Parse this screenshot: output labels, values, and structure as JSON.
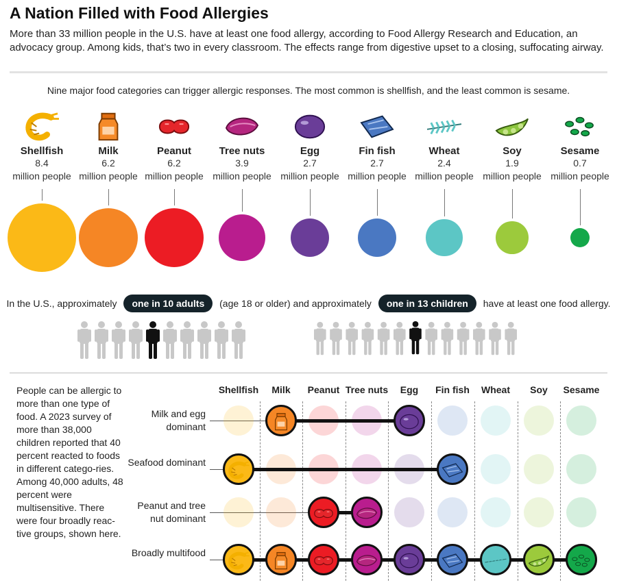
{
  "header": {
    "title": "A Nation Filled with Food Allergies",
    "intro": "More than 33 million people in the U.S. have at least one food allergy, according to Food Allergy Research and Education, an advocacy group. Among kids, that’s two in every classroom. The effects range from digestive upset to a closing, suffocating airway."
  },
  "subhead": "Nine major food categories can trigger allergic responses. The most common is shellfish, and the least common is sesame.",
  "chart_data": {
    "type": "bubble",
    "unit": "million people",
    "categories": [
      "Shellfish",
      "Milk",
      "Peanut",
      "Tree nuts",
      "Egg",
      "Fin fish",
      "Wheat",
      "Soy",
      "Sesame"
    ],
    "values": [
      8.4,
      6.2,
      6.2,
      3.9,
      2.7,
      2.7,
      2.4,
      1.9,
      0.7
    ],
    "value_labels": [
      "8.4",
      "6.2",
      "6.2",
      "3.9",
      "2.7",
      "2.7",
      "2.4",
      "1.9",
      "0.7"
    ],
    "colors": [
      "#fbb917",
      "#f58625",
      "#ec1c24",
      "#b91d8e",
      "#6a3d98",
      "#4a78c2",
      "#5cc6c5",
      "#9cca3c",
      "#14a84a"
    ],
    "icons": [
      "shrimp-icon",
      "milk-carton-icon",
      "peanut-icon",
      "almond-icon",
      "egg-icon",
      "fish-fillet-icon",
      "wheat-icon",
      "edamame-icon",
      "sesame-seed-icon"
    ]
  },
  "ratio": {
    "prefix": "In the U.S., approximately",
    "adults_pill": "one in 10 adults",
    "middle": "(age 18 or older) and approximately",
    "children_pill": "one in 13 children",
    "suffix": "have at least one food allergy.",
    "adults_total": 10,
    "adults_highlight": 5,
    "children_total": 13,
    "children_highlight": 7,
    "figure_color": "#c8c8c8",
    "highlight_color": "#111111"
  },
  "groups": {
    "sidenote": "People can be allergic to more than one type of food. A 2023 survey of more than 38,000 children reported that 40 percent reacted to foods in different catego-ries. Among 40,000 adults, 48 percent were multisensitive. There were four broadly reac-tive groups, shown here.",
    "columns": [
      "Shellfish",
      "Milk",
      "Peanut",
      "Tree nuts",
      "Egg",
      "Fin fish",
      "Wheat",
      "Soy",
      "Sesame"
    ],
    "rows": [
      {
        "label": "Milk and egg dominant",
        "members": [
          "Milk",
          "Egg"
        ]
      },
      {
        "label": "Seafood dominant",
        "members": [
          "Shellfish",
          "Fin fish"
        ]
      },
      {
        "label": "Peanut and tree nut dominant",
        "members": [
          "Peanut",
          "Tree nuts"
        ]
      },
      {
        "label": "Broadly multifood",
        "members": [
          "Shellfish",
          "Milk",
          "Peanut",
          "Tree nuts",
          "Egg",
          "Fin fish",
          "Wheat",
          "Soy",
          "Sesame"
        ]
      }
    ]
  }
}
